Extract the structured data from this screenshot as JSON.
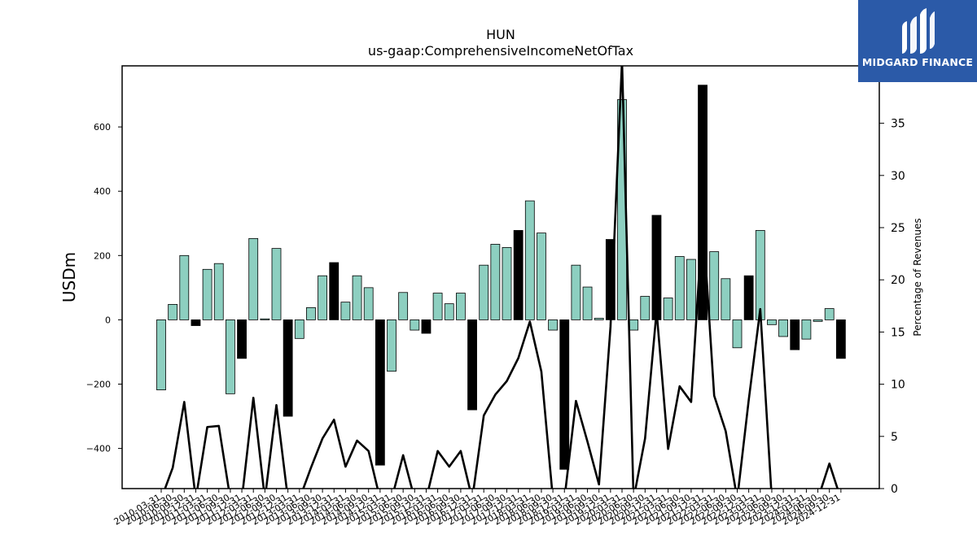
{
  "brand": {
    "name": "MIDGARD FINANCE",
    "bg_color": "#2b5aa8"
  },
  "chart_data": {
    "type": "bar",
    "title": "HUN",
    "subtitle": "us-gaap:ComprehensiveIncomeNetOfTax",
    "ylabel": "USDm",
    "y2label": "Percentage of Revenues",
    "ylim": [
      -525,
      790
    ],
    "y2lim": [
      0,
      40.5
    ],
    "yticks": [
      -400,
      -200,
      0,
      200,
      400,
      600
    ],
    "y2ticks": [
      0,
      5,
      10,
      15,
      20,
      25,
      30,
      35
    ],
    "colors": {
      "positive": "#8dcfc0",
      "negative": "#000000",
      "line": "#000000"
    },
    "categories": [
      "2010-03-31",
      "2010-06-30",
      "2010-09-30",
      "2010-12-31",
      "2011-03-31",
      "2011-06-30",
      "2011-09-30",
      "2011-12-31",
      "2012-03-31",
      "2012-06-30",
      "2012-09-30",
      "2012-12-31",
      "2013-03-31",
      "2013-06-30",
      "2013-09-30",
      "2013-12-31",
      "2014-03-31",
      "2014-06-30",
      "2014-09-30",
      "2014-12-31",
      "2015-03-31",
      "2015-06-30",
      "2015-09-30",
      "2015-12-31",
      "2016-03-31",
      "2016-06-30",
      "2016-09-30",
      "2016-12-31",
      "2017-03-31",
      "2017-06-30",
      "2017-09-30",
      "2017-12-31",
      "2018-03-31",
      "2018-06-30",
      "2018-09-30",
      "2018-12-31",
      "2019-03-31",
      "2019-06-30",
      "2019-09-30",
      "2019-12-31",
      "2020-03-31",
      "2020-06-30",
      "2020-09-30",
      "2020-12-31",
      "2021-03-31",
      "2021-06-30",
      "2021-09-30",
      "2021-12-31",
      "2022-03-31",
      "2022-06-30",
      "2022-09-30",
      "2022-12-31",
      "2023-03-31",
      "2023-06-30",
      "2023-09-30",
      "2023-12-31",
      "2024-03-31",
      "2024-06-30",
      "2024-09-30",
      "2024-12-31"
    ],
    "series": [
      {
        "kind": "bar",
        "values": [
          -218,
          48,
          200,
          -18,
          157,
          175,
          -230,
          -120,
          253,
          3,
          222,
          -300,
          -58,
          38,
          137,
          178,
          55,
          137,
          100,
          -452,
          -160,
          85,
          -32,
          -42,
          83,
          50,
          83,
          -280,
          170,
          235,
          225,
          278,
          370,
          270,
          -32,
          -465,
          170,
          102,
          5,
          250,
          685,
          -32,
          73,
          325,
          68,
          197,
          188,
          730,
          212,
          128,
          -87,
          137,
          278,
          -15,
          -52,
          -93,
          -60,
          -5,
          35,
          -120
        ],
        "negative_highlight": [
          false,
          false,
          false,
          true,
          false,
          false,
          false,
          true,
          false,
          false,
          false,
          true,
          false,
          false,
          false,
          true,
          false,
          false,
          false,
          true,
          false,
          false,
          false,
          true,
          false,
          false,
          false,
          true,
          false,
          false,
          false,
          true,
          false,
          false,
          false,
          true,
          false,
          false,
          false,
          true,
          false,
          false,
          false,
          true,
          false,
          false,
          false,
          true,
          false,
          false,
          false,
          true,
          false,
          false,
          false,
          true,
          false,
          false,
          false,
          true
        ]
      },
      {
        "kind": "line",
        "axis": "right",
        "values": [
          -1,
          2,
          8.3,
          -1,
          5.9,
          6,
          -1,
          -1,
          8.7,
          -1,
          8,
          -1,
          -1,
          2,
          4.8,
          6.6,
          2.1,
          4.6,
          3.6,
          -1,
          -1,
          3.2,
          -1,
          -1,
          3.6,
          2.1,
          3.6,
          -1,
          7,
          9,
          10.3,
          12.5,
          16,
          11.2,
          -1,
          -1,
          8.4,
          4.5,
          0.4,
          15.5,
          41,
          -1,
          4.8,
          17,
          3.8,
          9.8,
          8.3,
          26,
          8.9,
          5.5,
          -1,
          8.5,
          17.2,
          -1,
          -1,
          -1,
          -1,
          -1,
          2.4,
          -1
        ]
      }
    ]
  }
}
